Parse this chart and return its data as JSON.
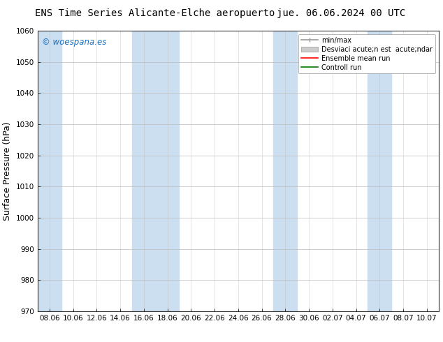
{
  "title_left": "ENS Time Series Alicante-Elche aeropuerto",
  "title_right": "jue. 06.06.2024 00 UTC",
  "ylabel": "Surface Pressure (hPa)",
  "ylim": [
    970,
    1060
  ],
  "yticks": [
    970,
    980,
    990,
    1000,
    1010,
    1020,
    1030,
    1040,
    1050,
    1060
  ],
  "xtick_labels": [
    "08.06",
    "10.06",
    "12.06",
    "14.06",
    "16.06",
    "18.06",
    "20.06",
    "22.06",
    "24.06",
    "26.06",
    "28.06",
    "30.06",
    "02.07",
    "04.07",
    "06.07",
    "08.07",
    "10.07"
  ],
  "watermark": "© woespana.es",
  "legend_entries": [
    "min/max",
    "Desviaci acute;n est  acute;ndar",
    "Ensemble mean run",
    "Controll run"
  ],
  "bg_color": "#ffffff",
  "plot_bg_color": "#ffffff",
  "band_color": "#ccdff0",
  "band_alpha": 1.0,
  "title_fontsize": 10,
  "axis_label_fontsize": 9,
  "tick_fontsize": 7.5,
  "watermark_color": "#1a6fbc",
  "grid_color": "#bbbbbb",
  "mean_run_color": "#ff0000",
  "control_run_color": "#007700",
  "minmax_color": "#999999",
  "std_color": "#cccccc"
}
